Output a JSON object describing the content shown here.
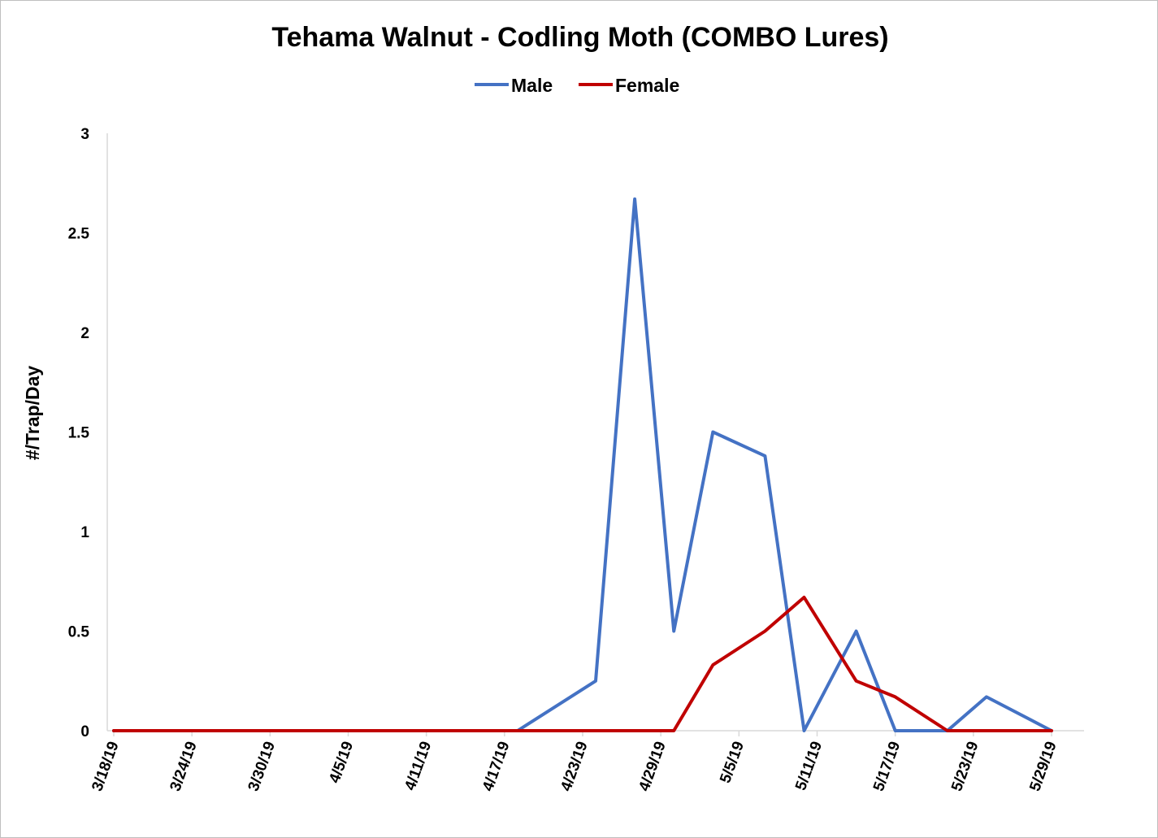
{
  "chart_data": {
    "type": "line",
    "title": "Tehama Walnut - Codling Moth (COMBO Lures)",
    "xlabel": "",
    "ylabel": "#/Trap/Day",
    "ylim": [
      0,
      3
    ],
    "yticks": [
      "0",
      "0.5",
      "1",
      "1.5",
      "2",
      "2.5",
      "3"
    ],
    "xlim": [
      "3/18/19",
      "5/29/19"
    ],
    "xticks": [
      "3/18/19",
      "3/24/19",
      "3/30/19",
      "4/5/19",
      "4/11/19",
      "4/17/19",
      "4/23/19",
      "4/29/19",
      "5/5/19",
      "5/11/19",
      "5/17/19",
      "5/23/19",
      "5/29/19"
    ],
    "grid": false,
    "legend_position": "top",
    "series": [
      {
        "name": "Male",
        "color": "#4472C4",
        "x": [
          "3/18/19",
          "4/18/19",
          "4/24/19",
          "4/27/19",
          "4/30/19",
          "5/3/19",
          "5/7/19",
          "5/10/19",
          "5/14/19",
          "5/17/19",
          "5/21/19",
          "5/24/19",
          "5/29/19"
        ],
        "y": [
          0,
          0,
          0.25,
          2.67,
          0.5,
          1.5,
          1.38,
          0,
          0.5,
          0,
          0,
          0.17,
          0
        ]
      },
      {
        "name": "Female",
        "color": "#C00000",
        "x": [
          "3/18/19",
          "4/30/19",
          "5/3/19",
          "5/7/19",
          "5/10/19",
          "5/14/19",
          "5/17/19",
          "5/21/19",
          "5/24/19",
          "5/29/19"
        ],
        "y": [
          0,
          0,
          0.33,
          0.5,
          0.67,
          0.25,
          0.17,
          0,
          0,
          0
        ]
      }
    ]
  }
}
